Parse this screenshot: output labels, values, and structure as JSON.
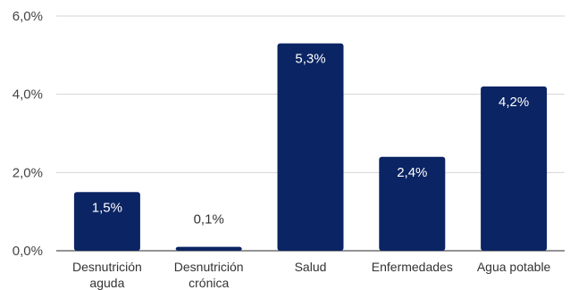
{
  "colors": {
    "bar": "#0b2463",
    "grid": "#d4d4d4",
    "baseline": "#555555",
    "label_inside": "#ffffff",
    "label_outside": "#333333"
  },
  "chart_data": {
    "type": "bar",
    "title": "",
    "xlabel": "",
    "ylabel": "",
    "ylim": [
      0,
      6
    ],
    "yticks": [
      0,
      2,
      4,
      6
    ],
    "ytick_labels": [
      "0,0%",
      "2,0%",
      "4,0%",
      "6,0%"
    ],
    "grid": true,
    "legend": "none",
    "categories": [
      [
        "Desnutrición",
        "aguda"
      ],
      [
        "Desnutrición",
        "crónica"
      ],
      [
        "Salud"
      ],
      [
        "Enfermedades"
      ],
      [
        "Agua potable"
      ]
    ],
    "values": [
      1.5,
      0.1,
      5.3,
      2.4,
      4.2
    ],
    "data_labels": [
      "1,5%",
      "0,1%",
      "5,3%",
      "2,4%",
      "4,2%"
    ]
  }
}
